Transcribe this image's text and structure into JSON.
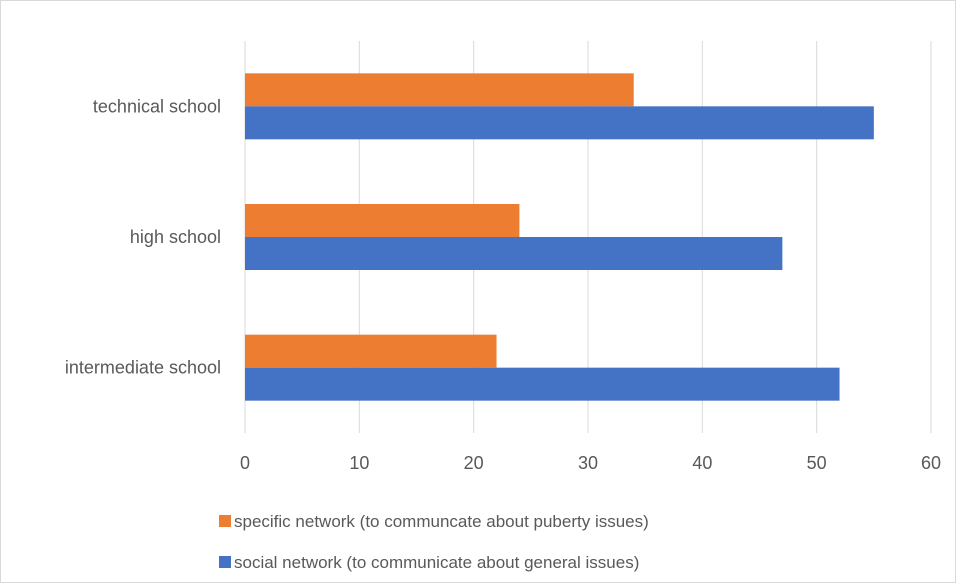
{
  "chart_data": {
    "type": "bar",
    "orientation": "horizontal",
    "categories": [
      "technical school",
      "high school",
      "intermediate school"
    ],
    "series": [
      {
        "name": "specific network (to communcate about puberty issues)",
        "color": "#ED7D31",
        "values": [
          34,
          24,
          22
        ]
      },
      {
        "name": "social network (to communicate about general issues)",
        "color": "#4472C4",
        "values": [
          55,
          47,
          52
        ]
      }
    ],
    "xlim": [
      0,
      60
    ],
    "xticks": [
      0,
      10,
      20,
      30,
      40,
      50,
      60
    ],
    "grid": true,
    "legend_position": "bottom",
    "title": "",
    "xlabel": "",
    "ylabel": ""
  }
}
